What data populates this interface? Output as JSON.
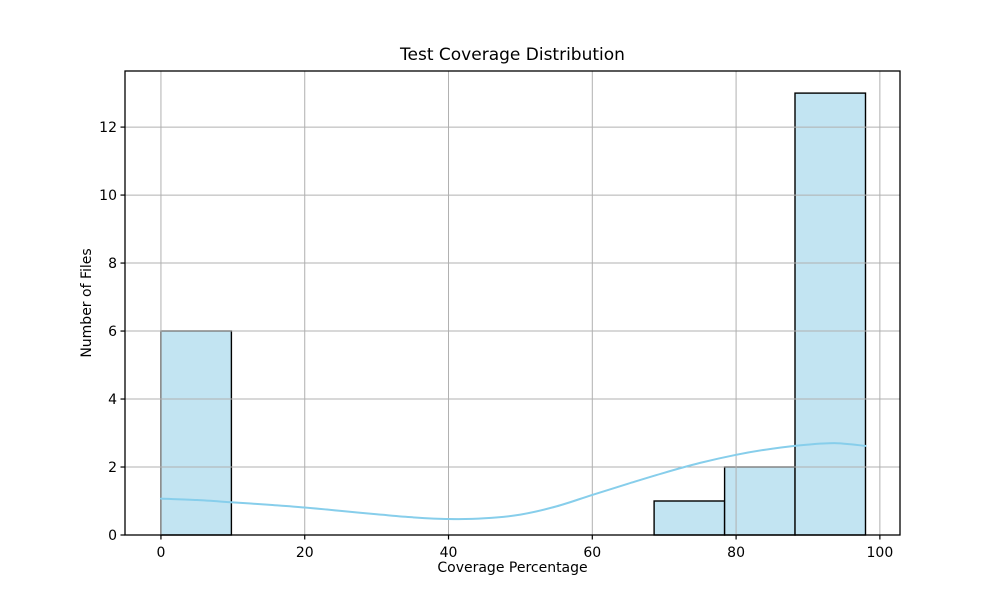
{
  "chart_data": {
    "type": "histogram",
    "title": "Test Coverage Distribution",
    "xlabel": "Coverage Percentage",
    "ylabel": "Number of Files",
    "xlim": [
      -5,
      102.8
    ],
    "ylim": [
      0,
      13.65
    ],
    "xticks": [
      0,
      20,
      40,
      60,
      80,
      100
    ],
    "yticks": [
      0,
      2,
      4,
      6,
      8,
      10,
      12
    ],
    "grid": true,
    "bin_edges": [
      0,
      9.8,
      19.6,
      29.4,
      39.2,
      49.0,
      58.8,
      68.6,
      78.4,
      88.2,
      98.0
    ],
    "counts": [
      6,
      0,
      0,
      0,
      0,
      0,
      0,
      1,
      2,
      13
    ],
    "kde_curve": {
      "x": [
        0,
        5,
        10,
        15,
        20,
        25,
        30,
        35,
        40,
        45,
        50,
        55,
        60,
        65,
        70,
        75,
        80,
        85,
        90,
        94,
        98
      ],
      "y": [
        1.07,
        1.03,
        0.96,
        0.89,
        0.81,
        0.71,
        0.61,
        0.52,
        0.47,
        0.49,
        0.6,
        0.84,
        1.18,
        1.51,
        1.83,
        2.12,
        2.36,
        2.54,
        2.66,
        2.7,
        2.62
      ]
    },
    "colors": {
      "bar_fill": "#c2e4f2",
      "bar_edge": "#000000",
      "kde_line": "#87ceeb",
      "grid_line": "#b0b0b0",
      "axis": "#000000",
      "background": "#ffffff"
    }
  }
}
